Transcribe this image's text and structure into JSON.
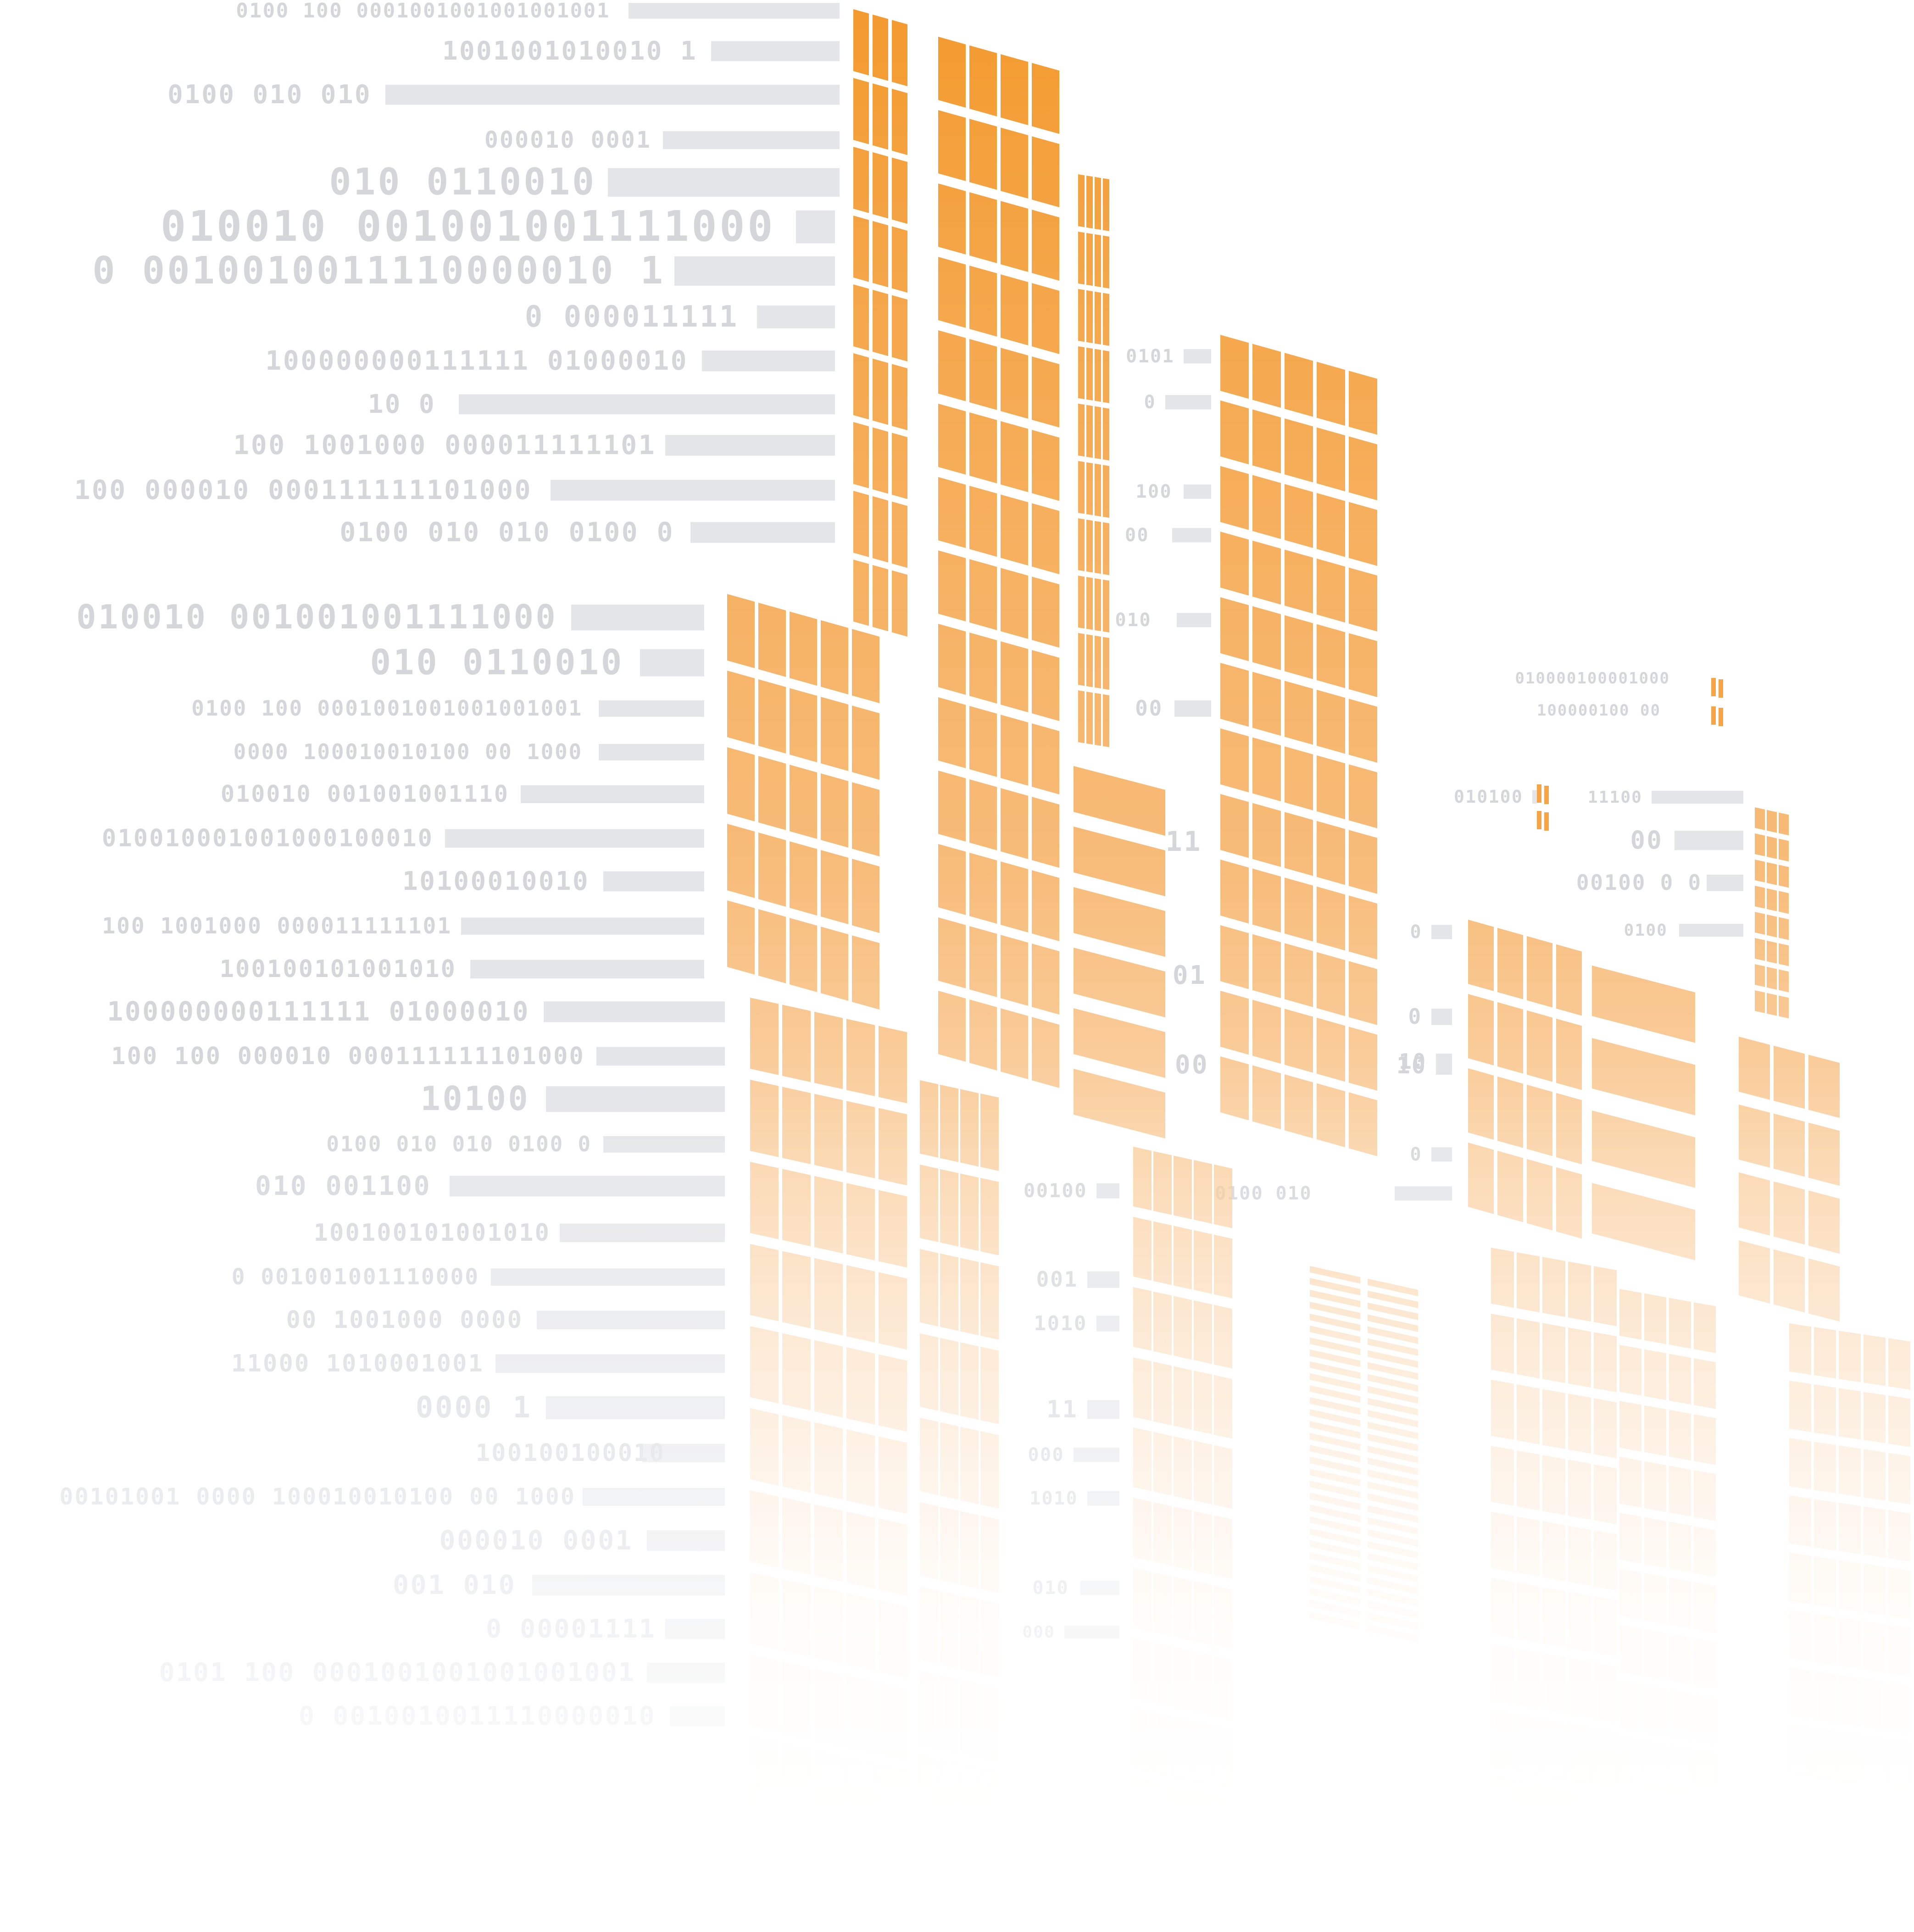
{
  "image": {
    "subject": "digital city skyline",
    "colors": {
      "accent": "#f39a2e",
      "background": "#ffffff",
      "code_text": "#d4d6da",
      "code_bar": "#e4e5e8"
    }
  },
  "binary_code": {
    "lines": [
      "0100 100 0001001001001001001",
      "1001001010010 1",
      "0100 010 010",
      "000010 0001",
      "010 0110010",
      "010010 001001001111000",
      "0 0010010011110000010 1",
      "0 000011111",
      "100000000111111 01000010",
      "10 0",
      "100 1001000 000011111101",
      "100 000010 000111111101000",
      "0100 010 010 0100 0",
      "010010 001001001111000",
      "010 0110010",
      "0100 100 0001001001001001001",
      "0000 100010010100 00 1000",
      "010010 001001001110",
      "010010001001000100010",
      "10100010010",
      "100 1001000 000011111101",
      "100100101001010",
      "100000000111111 01000010",
      "100 100 000010 000111111101000",
      "10100",
      "0100 010 010 0100 0",
      "010 001100",
      "100100101001010",
      "0 001001001110000",
      "00 1001000 0000",
      "11000 1010001001",
      "0000 1",
      "100100100010",
      "00101001 0000 100010010100 00 1000",
      "000010 0001",
      "001 010",
      "0 00001111",
      "0101 100 0001001001001001001",
      "0 0010010011110000010",
      "0101",
      "0",
      "100",
      "00",
      "010",
      "00",
      "11",
      "01",
      "00",
      "10",
      "00100",
      "001",
      "1010",
      "11",
      "000",
      "1010",
      "010",
      "000",
      "0100 010",
      "0",
      "0",
      "10",
      "0",
      "010000100001000",
      "100000100 00",
      "010100",
      "11100",
      "00",
      "00100 0 0",
      "0100"
    ]
  }
}
